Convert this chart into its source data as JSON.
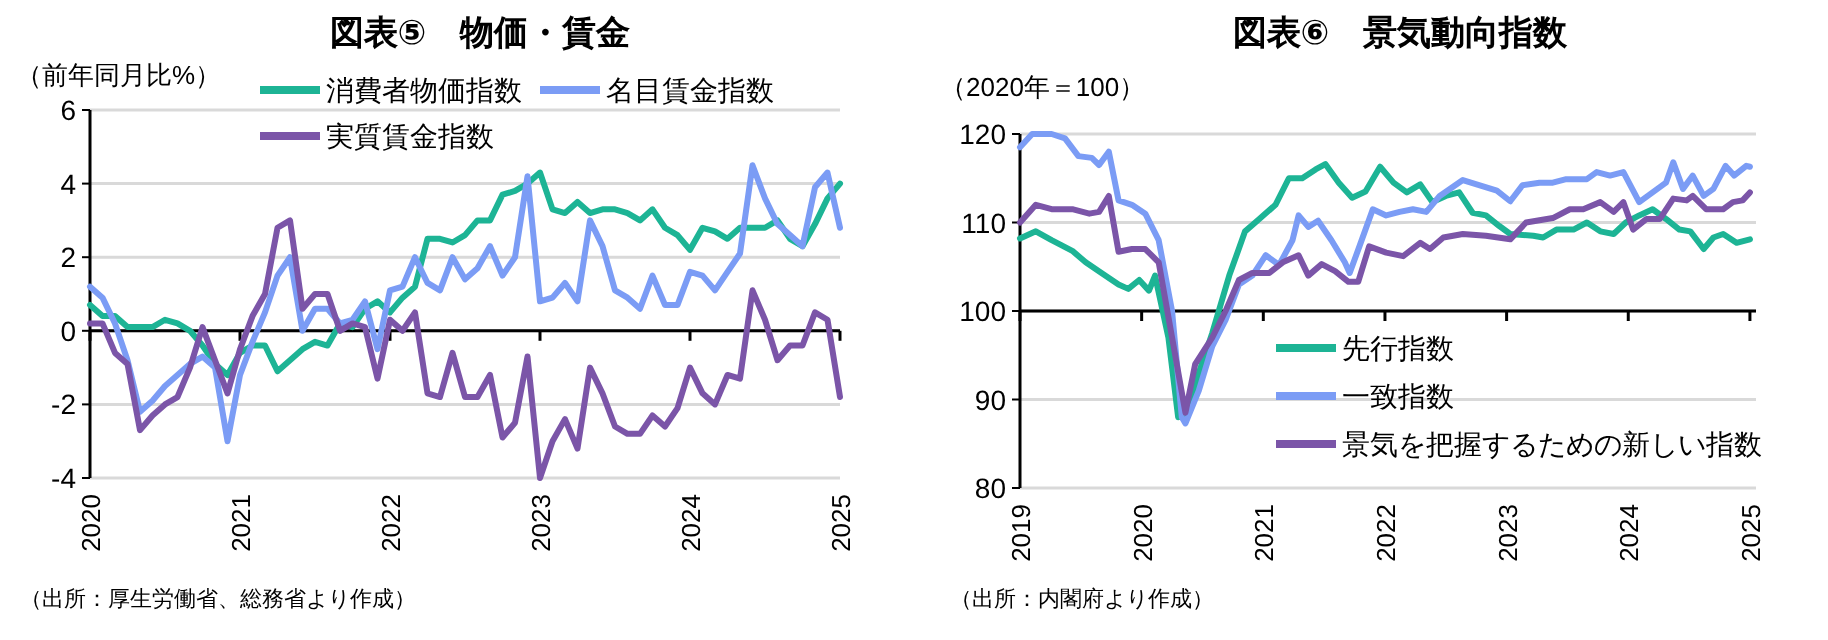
{
  "chart_data": [
    {
      "type": "line",
      "title": "図表⑤　物価・賃金",
      "ylabel": "（前年同月比%）",
      "xlim": [
        "2020-01",
        "2025-01"
      ],
      "xticks": [
        "2020",
        "2021",
        "2022",
        "2023",
        "2024",
        "2025"
      ],
      "ylim": [
        -4,
        6
      ],
      "yticks": [
        -4,
        -2,
        0,
        2,
        4,
        6
      ],
      "grid": "y",
      "legend": "top",
      "ref_lines": [
        {
          "axis": "y",
          "value": 0,
          "color": "#000000"
        }
      ],
      "x": [
        "2020-01",
        "2020-02",
        "2020-03",
        "2020-04",
        "2020-05",
        "2020-06",
        "2020-07",
        "2020-08",
        "2020-09",
        "2020-10",
        "2020-11",
        "2020-12",
        "2021-01",
        "2021-02",
        "2021-03",
        "2021-04",
        "2021-05",
        "2021-06",
        "2021-07",
        "2021-08",
        "2021-09",
        "2021-10",
        "2021-11",
        "2021-12",
        "2022-01",
        "2022-02",
        "2022-03",
        "2022-04",
        "2022-05",
        "2022-06",
        "2022-07",
        "2022-08",
        "2022-09",
        "2022-10",
        "2022-11",
        "2022-12",
        "2023-01",
        "2023-02",
        "2023-03",
        "2023-04",
        "2023-05",
        "2023-06",
        "2023-07",
        "2023-08",
        "2023-09",
        "2023-10",
        "2023-11",
        "2023-12",
        "2024-01",
        "2024-02",
        "2024-03",
        "2024-04",
        "2024-05",
        "2024-06",
        "2024-07",
        "2024-08",
        "2024-09",
        "2024-10",
        "2024-11",
        "2024-12",
        "2025-01"
      ],
      "series": [
        {
          "name": "消費者物価指数",
          "color": "#1db495",
          "values": [
            0.7,
            0.4,
            0.4,
            0.1,
            0.1,
            0.1,
            0.3,
            0.2,
            0.0,
            -0.4,
            -0.9,
            -1.2,
            -0.6,
            -0.4,
            -0.4,
            -1.1,
            -0.8,
            -0.5,
            -0.3,
            -0.4,
            0.2,
            0.1,
            0.6,
            0.8,
            0.5,
            0.9,
            1.2,
            2.5,
            2.5,
            2.4,
            2.6,
            3.0,
            3.0,
            3.7,
            3.8,
            4.0,
            4.3,
            3.3,
            3.2,
            3.5,
            3.2,
            3.3,
            3.3,
            3.2,
            3.0,
            3.3,
            2.8,
            2.6,
            2.2,
            2.8,
            2.7,
            2.5,
            2.8,
            2.8,
            2.8,
            3.0,
            2.5,
            2.3,
            2.9,
            3.6,
            4.0
          ]
        },
        {
          "name": "名目賃金指数",
          "color": "#7b9cf5",
          "values": [
            1.2,
            0.9,
            0.2,
            -0.8,
            -2.2,
            -1.9,
            -1.5,
            -1.2,
            -0.9,
            -0.7,
            -1.0,
            -3.0,
            -1.2,
            -0.3,
            0.5,
            1.5,
            2.0,
            0.0,
            0.6,
            0.6,
            0.2,
            0.3,
            0.8,
            -0.5,
            1.1,
            1.2,
            2.0,
            1.3,
            1.1,
            2.0,
            1.4,
            1.7,
            2.3,
            1.5,
            2.0,
            4.2,
            0.8,
            0.9,
            1.3,
            0.8,
            3.0,
            2.3,
            1.1,
            0.9,
            0.6,
            1.5,
            0.7,
            0.7,
            1.6,
            1.5,
            1.1,
            1.6,
            2.1,
            4.5,
            3.6,
            2.9,
            2.6,
            2.3,
            3.9,
            4.3,
            2.8
          ]
        },
        {
          "name": "実質賃金指数",
          "color": "#7b55a8",
          "values": [
            0.2,
            0.2,
            -0.6,
            -0.9,
            -2.7,
            -2.3,
            -2.0,
            -1.8,
            -1.0,
            0.1,
            -0.8,
            -1.7,
            -0.5,
            0.4,
            1.0,
            2.8,
            3.0,
            0.6,
            1.0,
            1.0,
            0.0,
            0.2,
            0.1,
            -1.3,
            0.3,
            0.0,
            0.5,
            -1.7,
            -1.8,
            -0.6,
            -1.8,
            -1.8,
            -1.2,
            -2.9,
            -2.5,
            -0.7,
            -4.0,
            -3.0,
            -2.4,
            -3.2,
            -1.0,
            -1.7,
            -2.6,
            -2.8,
            -2.8,
            -2.3,
            -2.6,
            -2.1,
            -1.0,
            -1.7,
            -2.0,
            -1.2,
            -1.3,
            1.1,
            0.3,
            -0.8,
            -0.4,
            -0.4,
            0.5,
            0.3,
            -1.8
          ]
        }
      ],
      "annotations": [
        "（出所：厚生労働省、総務省より作成）"
      ]
    },
    {
      "type": "line",
      "title": "図表⑥　景気動向指数",
      "ylabel": "（2020年＝100）",
      "xlim": [
        2019,
        2025.05
      ],
      "xticks": [
        2019,
        2020,
        2021,
        2022,
        2023,
        2024,
        2025
      ],
      "ylim": [
        80,
        120
      ],
      "yticks": [
        80,
        90,
        100,
        110,
        120
      ],
      "grid": "y",
      "legend": "bottom right",
      "ref_lines": [
        {
          "axis": "y",
          "value": 100,
          "color": "#000000"
        }
      ],
      "series": [
        {
          "name": "先行指数",
          "color": "#1db495",
          "x": [
            2019.0,
            2019.13,
            2019.26,
            2019.43,
            2019.54,
            2019.67,
            2019.81,
            2019.89,
            2019.98,
            2020.06,
            2020.11,
            2020.22,
            2020.3,
            2020.39,
            2020.47,
            2020.58,
            2020.72,
            2020.85,
            2020.96,
            2021.1,
            2021.21,
            2021.32,
            2021.43,
            2021.51,
            2021.62,
            2021.73,
            2021.84,
            2021.96,
            2022.07,
            2022.18,
            2022.29,
            2022.39,
            2022.5,
            2022.61,
            2022.72,
            2022.83,
            2022.94,
            2023.03,
            2023.22,
            2023.3,
            2023.41,
            2023.55,
            2023.66,
            2023.77,
            2023.88,
            2023.98,
            2024.09,
            2024.2,
            2024.31,
            2024.42,
            2024.51,
            2024.62,
            2024.7,
            2024.78,
            2024.89,
            2025.0
          ],
          "values": [
            108.2,
            109,
            108,
            106.8,
            105.5,
            104.3,
            103,
            102.5,
            103.5,
            102.3,
            104,
            97,
            88,
            88.5,
            93,
            97.5,
            104,
            109,
            110.3,
            112,
            115,
            115,
            116,
            116.6,
            114.5,
            112.8,
            113.5,
            116.3,
            114.5,
            113.4,
            114.3,
            112.3,
            113,
            113.4,
            111.1,
            110.8,
            109.6,
            108.7,
            108.5,
            108.3,
            109.2,
            109.2,
            110,
            109,
            108.7,
            110,
            110.8,
            111.5,
            110.4,
            109.2,
            109,
            107,
            108.3,
            108.7,
            107.7,
            108.1
          ]
        },
        {
          "name": "一致指数",
          "color": "#7b9cf5",
          "x": [
            2019.0,
            2019.1,
            2019.26,
            2019.37,
            2019.48,
            2019.59,
            2019.65,
            2019.73,
            2019.81,
            2019.92,
            2020.03,
            2020.14,
            2020.25,
            2020.33,
            2020.36,
            2020.47,
            2020.58,
            2020.69,
            2020.8,
            2020.91,
            2021.02,
            2021.13,
            2021.24,
            2021.29,
            2021.37,
            2021.45,
            2021.56,
            2021.67,
            2021.71,
            2021.79,
            2021.9,
            2022.01,
            2022.12,
            2022.23,
            2022.34,
            2022.45,
            2022.64,
            2022.78,
            2022.92,
            2023.03,
            2023.13,
            2023.27,
            2023.38,
            2023.49,
            2023.66,
            2023.74,
            2023.85,
            2023.96,
            2024.09,
            2024.2,
            2024.31,
            2024.37,
            2024.45,
            2024.53,
            2024.62,
            2024.7,
            2024.8,
            2024.87,
            2024.97,
            2025.0
          ],
          "values": [
            118.5,
            120,
            120,
            119.5,
            117.5,
            117.3,
            116.5,
            118,
            112.5,
            112,
            111,
            108,
            100,
            88,
            87.3,
            91,
            96,
            99,
            103,
            104,
            106.3,
            105.2,
            108,
            110.8,
            109.5,
            110.2,
            108,
            105.5,
            104.3,
            107.3,
            111.5,
            110.8,
            111.2,
            111.5,
            111.2,
            113,
            114.8,
            114.2,
            113.6,
            112.4,
            114.2,
            114.5,
            114.5,
            114.9,
            114.9,
            115.7,
            115.3,
            115.7,
            112.3,
            113.4,
            114.5,
            116.8,
            113.8,
            115.3,
            113,
            113.8,
            116.4,
            115.3,
            116.4,
            116.3
          ]
        },
        {
          "name": "景気を把握するための新しい指数",
          "color": "#7b55a8",
          "x": [
            2019.0,
            2019.13,
            2019.26,
            2019.43,
            2019.57,
            2019.65,
            2019.73,
            2019.81,
            2019.92,
            2020.03,
            2020.14,
            2020.25,
            2020.36,
            2020.44,
            2020.58,
            2020.69,
            2020.8,
            2020.91,
            2021.05,
            2021.16,
            2021.29,
            2021.37,
            2021.48,
            2021.59,
            2021.7,
            2021.78,
            2021.87,
            2022.01,
            2022.15,
            2022.29,
            2022.37,
            2022.48,
            2022.64,
            2022.83,
            2023.03,
            2023.16,
            2023.38,
            2023.52,
            2023.63,
            2023.77,
            2023.88,
            2023.96,
            2024.04,
            2024.15,
            2024.26,
            2024.37,
            2024.48,
            2024.53,
            2024.64,
            2024.78,
            2024.86,
            2024.94,
            2025.0
          ],
          "values": [
            110,
            112,
            111.5,
            111.5,
            111,
            111.2,
            113,
            106.7,
            107,
            107,
            105.5,
            97,
            88.5,
            94,
            97,
            100,
            103.5,
            104.3,
            104.3,
            105.5,
            106.3,
            104,
            105.3,
            104.5,
            103.3,
            103.3,
            107.3,
            106.6,
            106.2,
            107.7,
            107,
            108.3,
            108.7,
            108.5,
            108.1,
            110,
            110.5,
            111.5,
            111.5,
            112.3,
            111.2,
            112.3,
            109.2,
            110.4,
            110.4,
            112.7,
            112.5,
            113,
            111.5,
            111.5,
            112.3,
            112.5,
            113.4
          ]
        }
      ],
      "annotations": [
        "（出所：内閣府より作成）"
      ]
    }
  ]
}
